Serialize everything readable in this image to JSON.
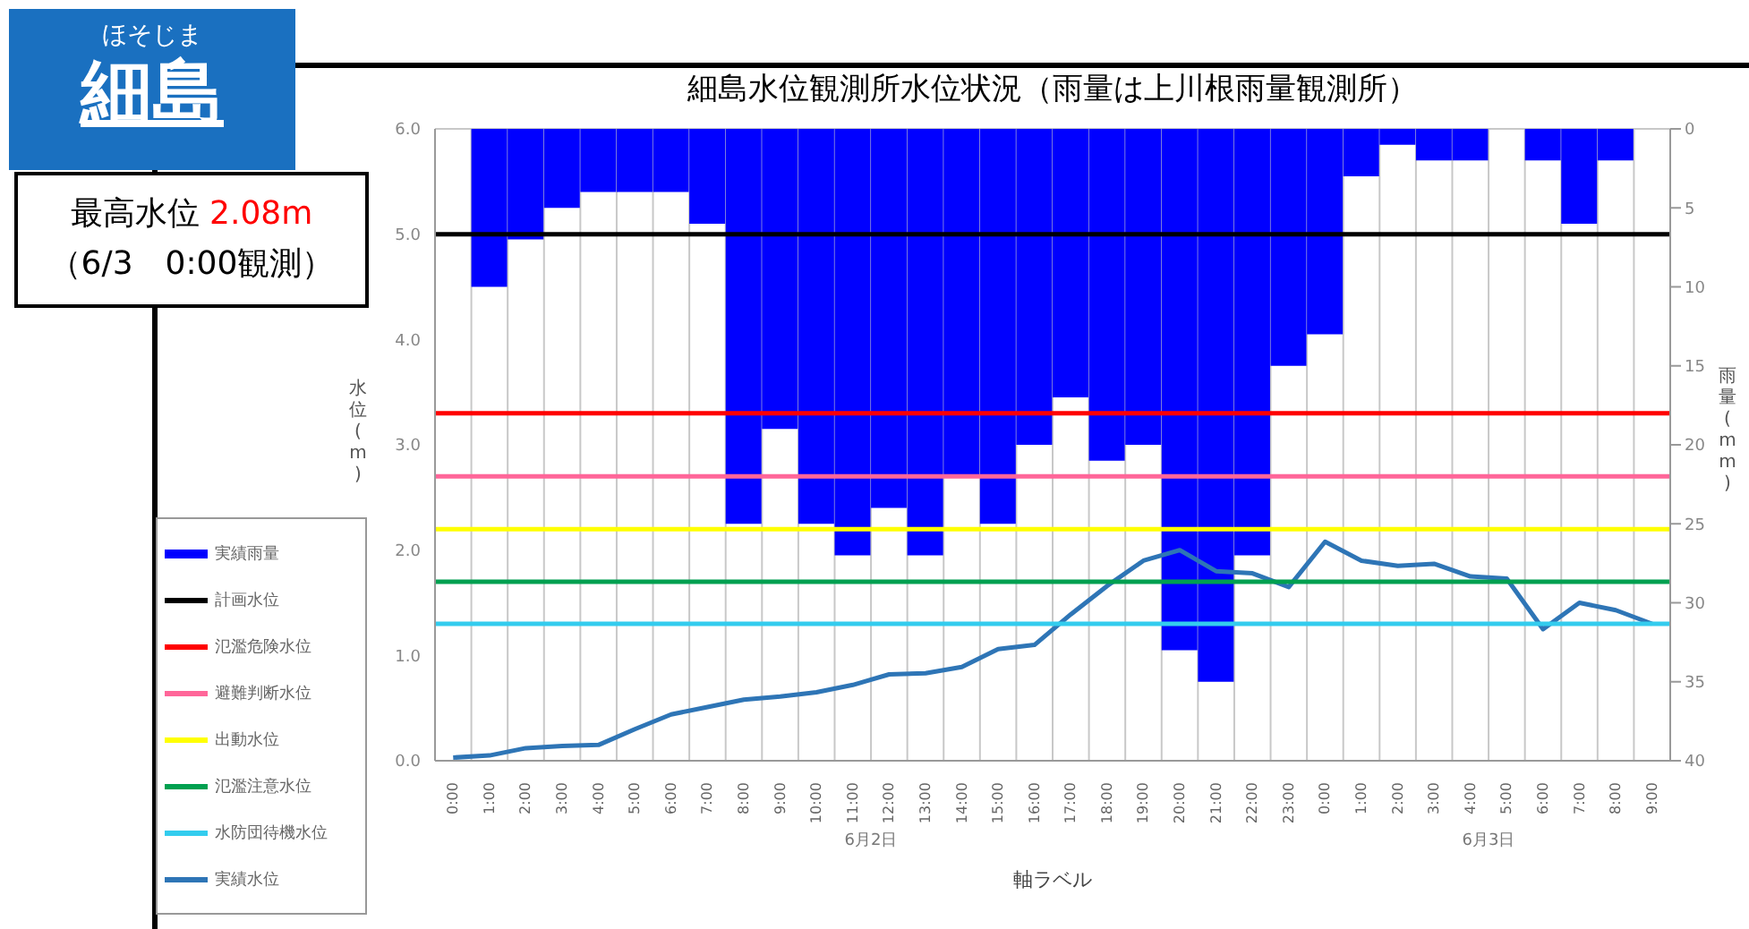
{
  "chart_data": {
    "type": "bar",
    "title": "細島水位観測所水位状況（雨量は上川根雨量観測所）",
    "xlabel": "軸ラベル",
    "ylabel": "水位(m)",
    "y2label": "雨量(mm)",
    "annotations": [
      "ほそじま",
      "細島",
      "最高水位 2.08m",
      "（6/3　0:00観測）",
      "6月2日",
      "6月3日"
    ],
    "categories": [
      "0:00",
      "1:00",
      "2:00",
      "3:00",
      "4:00",
      "5:00",
      "6:00",
      "7:00",
      "8:00",
      "9:00",
      "10:00",
      "11:00",
      "12:00",
      "13:00",
      "14:00",
      "15:00",
      "16:00",
      "17:00",
      "18:00",
      "19:00",
      "20:00",
      "21:00",
      "22:00",
      "23:00",
      "0:00",
      "1:00",
      "2:00",
      "3:00",
      "4:00",
      "5:00",
      "6:00",
      "7:00",
      "8:00",
      "9:00"
    ],
    "series": [
      {
        "name": "実績雨量",
        "axis": "y2",
        "color": "#0000ff",
        "values": [
          0,
          10,
          7,
          5,
          4,
          4,
          4,
          6,
          25,
          19,
          25,
          27,
          24,
          27,
          22,
          25,
          20,
          17,
          21,
          20,
          33,
          35,
          27,
          15,
          13,
          3,
          1,
          2,
          2,
          0,
          2,
          6,
          2,
          0
        ]
      },
      {
        "name": "実績水位",
        "type": "line",
        "color": "#2e75b6",
        "values": [
          0.03,
          0.05,
          0.12,
          0.14,
          0.15,
          0.3,
          0.44,
          0.51,
          0.58,
          0.61,
          0.65,
          0.72,
          0.82,
          0.83,
          0.89,
          1.06,
          1.1,
          1.39,
          1.66,
          1.9,
          2.0,
          1.8,
          1.78,
          1.65,
          2.08,
          1.9,
          1.85,
          1.87,
          1.75,
          1.73,
          1.25,
          1.5,
          1.43,
          1.3
        ]
      }
    ],
    "ref_lines": [
      {
        "axis": "y",
        "value": 5,
        "label": "計画水位",
        "color": "#000000"
      },
      {
        "axis": "y",
        "value": 3.3,
        "label": "氾濫危険水位",
        "color": "#ff0000"
      },
      {
        "axis": "y",
        "value": 2.7,
        "label": "避難判断水位",
        "color": "#ff6699"
      },
      {
        "axis": "y",
        "value": 2.2,
        "label": "出動水位",
        "color": "#ffff00"
      },
      {
        "axis": "y",
        "value": 1.7,
        "label": "氾濫注意水位",
        "color": "#00a050"
      },
      {
        "axis": "y",
        "value": 1.3,
        "label": "水防団待機水位",
        "color": "#33ccee"
      }
    ],
    "ylim": [
      0,
      6
    ],
    "yticks": [
      {
        "value": 0,
        "label": "0.0"
      },
      {
        "value": 1,
        "label": "1.0"
      },
      {
        "value": 2,
        "label": "2.0"
      },
      {
        "value": 3,
        "label": "3.0"
      },
      {
        "value": 4,
        "label": "4.0"
      },
      {
        "value": 5,
        "label": "5.0"
      },
      {
        "value": 6,
        "label": "6.0"
      }
    ],
    "y2lim": [
      40,
      0
    ],
    "y2ticks": [
      0,
      5,
      10,
      15,
      20,
      25,
      30,
      35,
      40
    ],
    "grid": true,
    "legend": "left",
    "marker": "none",
    "line_style": "solid"
  }
}
